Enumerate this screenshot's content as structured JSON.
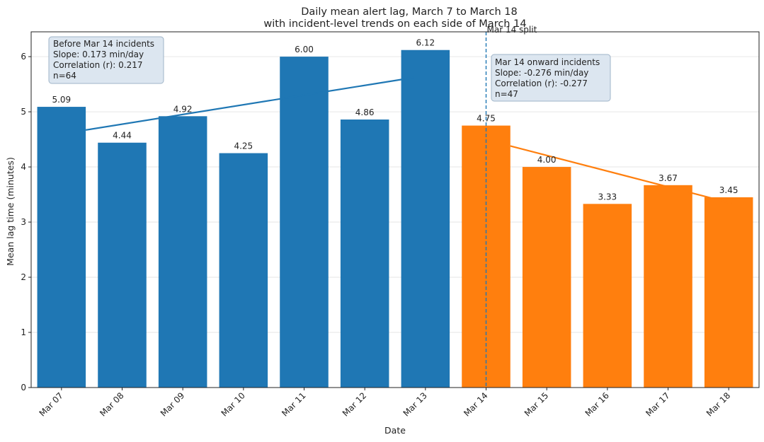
{
  "chart_data": {
    "type": "bar",
    "title": "Daily mean alert lag, March 7 to March 18",
    "subtitle": "with incident-level trends on each side of March 14",
    "xlabel": "Date",
    "ylabel": "Mean lag time (minutes)",
    "ylim": [
      0,
      6.45
    ],
    "yticks": [
      "0",
      "1",
      "2",
      "3",
      "4",
      "5",
      "6"
    ],
    "categories": [
      "Mar 07",
      "Mar 08",
      "Mar 09",
      "Mar 10",
      "Mar 11",
      "Mar 12",
      "Mar 13",
      "Mar 14",
      "Mar 15",
      "Mar 16",
      "Mar 17",
      "Mar 18"
    ],
    "values": [
      5.09,
      4.44,
      4.92,
      4.25,
      6.0,
      4.86,
      6.12,
      4.75,
      4.0,
      3.33,
      3.67,
      3.45
    ],
    "value_labels": [
      "5.09",
      "4.44",
      "4.92",
      "4.25",
      "6.00",
      "4.86",
      "6.12",
      "4.75",
      "4.00",
      "3.33",
      "3.67",
      "3.45"
    ],
    "grid": true,
    "split": {
      "category_index": 7,
      "label": "Mar 14 split",
      "color": "#1f77b4"
    },
    "colors": {
      "before": "#1f77b4",
      "after": "#ff7f0e",
      "annotation_fill": "#dce6f0",
      "annotation_border": "#9fb4c8"
    },
    "trends": [
      {
        "name": "before",
        "color": "#1f77b4",
        "start": {
          "x_index": 0.4,
          "y": 4.67
        },
        "end": {
          "x_index": 5.8,
          "y": 5.62
        }
      },
      {
        "name": "after",
        "color": "#ff7f0e",
        "start": {
          "x_index": 7.4,
          "y": 4.38
        },
        "end": {
          "x_index": 11.05,
          "y": 3.34
        }
      }
    ],
    "annotations": [
      {
        "name": "before",
        "lines": [
          "Before Mar 14 incidents",
          "Slope: 0.173 min/day",
          "Correlation (r): 0.217",
          "n=64"
        ]
      },
      {
        "name": "after",
        "lines": [
          "Mar 14 onward incidents",
          "Slope: -0.276 min/day",
          "Correlation (r): -0.277",
          "n=47"
        ]
      }
    ]
  }
}
